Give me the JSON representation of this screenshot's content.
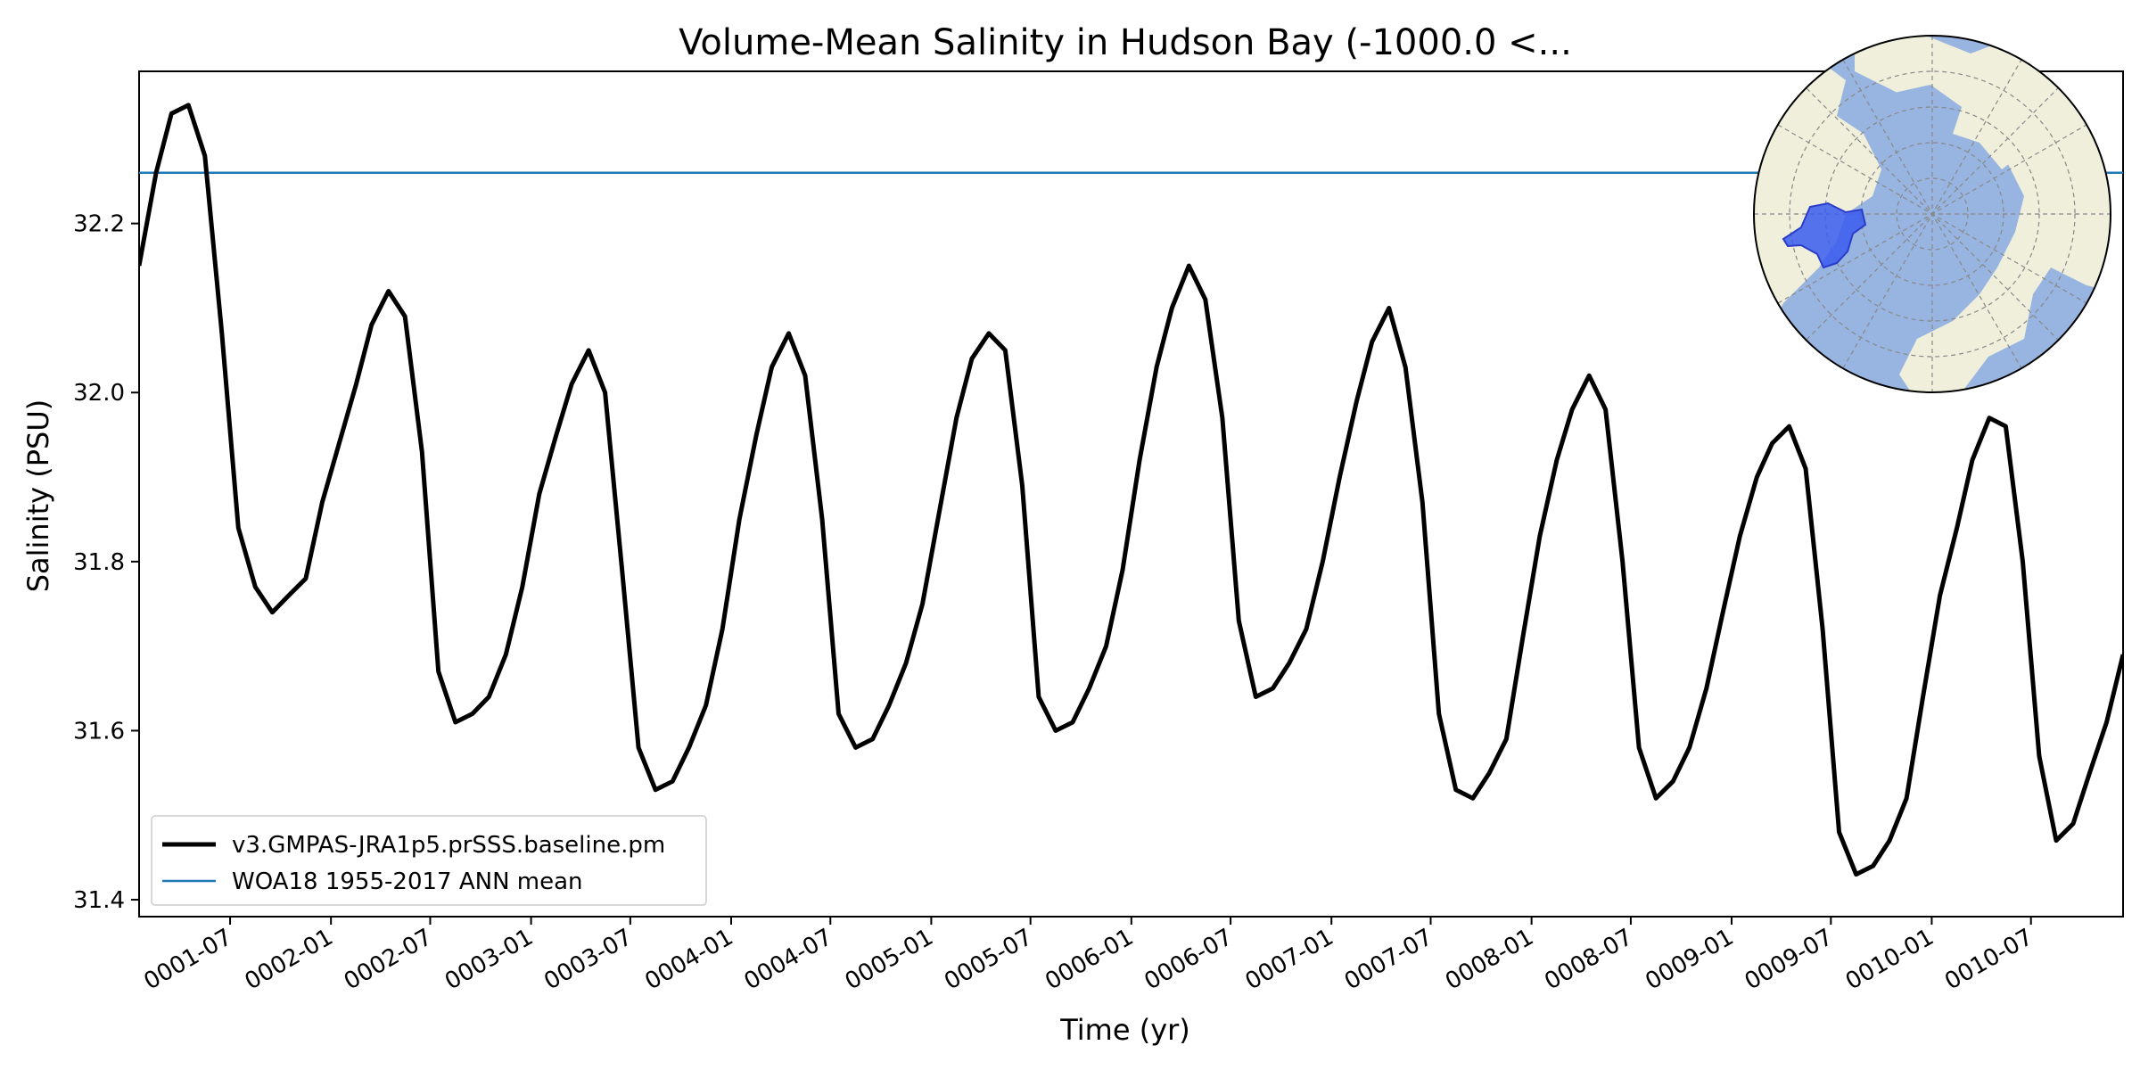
{
  "chart_data": {
    "type": "line",
    "title": "Volume-Mean Salinity in Hudson Bay (-1000.0 <...",
    "xlabel": "Time (yr)",
    "ylabel": "Salinity (PSU)",
    "xlim": [
      "0001-01-16",
      "0010-12-16"
    ],
    "ylim": [
      31.38,
      32.38
    ],
    "y_ticks": [
      31.4,
      31.6,
      31.8,
      32.0,
      32.2
    ],
    "y_tick_labels": [
      "31.4",
      "31.6",
      "31.8",
      "32.0",
      "32.2"
    ],
    "x_ticks": [
      "0001-07-01",
      "0002-01-01",
      "0002-07-01",
      "0003-01-01",
      "0003-07-01",
      "0004-01-01",
      "0004-07-01",
      "0005-01-01",
      "0005-07-01",
      "0006-01-01",
      "0006-07-01",
      "0007-01-01",
      "0007-07-01",
      "0008-01-01",
      "0008-07-01",
      "0009-01-01",
      "0009-07-01",
      "0010-01-01",
      "0010-07-01"
    ],
    "x_tick_labels": [
      "0001-07",
      "0002-01",
      "0002-07",
      "0003-01",
      "0003-07",
      "0004-01",
      "0004-07",
      "0005-01",
      "0005-07",
      "0006-01",
      "0006-07",
      "0007-01",
      "0007-07",
      "0008-01",
      "0008-07",
      "0009-01",
      "0009-07",
      "0010-01",
      "0010-07"
    ],
    "grid": false,
    "legend_position": "lower-left",
    "series": [
      {
        "name": "v3.GMPAS-JRA1p5.prSSS.baseline.pm",
        "color": "#000000",
        "x": [
          "0001-01",
          "0001-02",
          "0001-03",
          "0001-04",
          "0001-05",
          "0001-06",
          "0001-07",
          "0001-08",
          "0001-09",
          "0001-10",
          "0001-11",
          "0001-12",
          "0002-01",
          "0002-02",
          "0002-03",
          "0002-04",
          "0002-05",
          "0002-06",
          "0002-07",
          "0002-08",
          "0002-09",
          "0002-10",
          "0002-11",
          "0002-12",
          "0003-01",
          "0003-02",
          "0003-03",
          "0003-04",
          "0003-05",
          "0003-06",
          "0003-07",
          "0003-08",
          "0003-09",
          "0003-10",
          "0003-11",
          "0003-12",
          "0004-01",
          "0004-02",
          "0004-03",
          "0004-04",
          "0004-05",
          "0004-06",
          "0004-07",
          "0004-08",
          "0004-09",
          "0004-10",
          "0004-11",
          "0004-12",
          "0005-01",
          "0005-02",
          "0005-03",
          "0005-04",
          "0005-05",
          "0005-06",
          "0005-07",
          "0005-08",
          "0005-09",
          "0005-10",
          "0005-11",
          "0005-12",
          "0006-01",
          "0006-02",
          "0006-03",
          "0006-04",
          "0006-05",
          "0006-06",
          "0006-07",
          "0006-08",
          "0006-09",
          "0006-10",
          "0006-11",
          "0006-12",
          "0007-01",
          "0007-02",
          "0007-03",
          "0007-04",
          "0007-05",
          "0007-06",
          "0007-07",
          "0007-08",
          "0007-09",
          "0007-10",
          "0007-11",
          "0007-12",
          "0008-01",
          "0008-02",
          "0008-03",
          "0008-04",
          "0008-05",
          "0008-06",
          "0008-07",
          "0008-08",
          "0008-09",
          "0008-10",
          "0008-11",
          "0008-12",
          "0009-01",
          "0009-02",
          "0009-03",
          "0009-04",
          "0009-05",
          "0009-06",
          "0009-07",
          "0009-08",
          "0009-09",
          "0009-10",
          "0009-11",
          "0009-12",
          "0010-01",
          "0010-02",
          "0010-03",
          "0010-04",
          "0010-05",
          "0010-06",
          "0010-07",
          "0010-08",
          "0010-09",
          "0010-10",
          "0010-11",
          "0010-12"
        ],
        "values": [
          32.15,
          32.26,
          32.33,
          32.34,
          32.28,
          32.07,
          31.84,
          31.77,
          31.74,
          31.76,
          31.78,
          31.87,
          31.94,
          32.01,
          32.08,
          32.12,
          32.09,
          31.93,
          31.67,
          31.61,
          31.62,
          31.64,
          31.69,
          31.77,
          31.88,
          31.95,
          32.01,
          32.05,
          32.0,
          31.79,
          31.58,
          31.53,
          31.54,
          31.58,
          31.63,
          31.72,
          31.85,
          31.95,
          32.03,
          32.07,
          32.02,
          31.85,
          31.62,
          31.58,
          31.59,
          31.63,
          31.68,
          31.75,
          31.86,
          31.97,
          32.04,
          32.07,
          32.05,
          31.89,
          31.64,
          31.6,
          31.61,
          31.65,
          31.7,
          31.79,
          31.92,
          32.03,
          32.1,
          32.15,
          32.11,
          31.97,
          31.73,
          31.64,
          31.65,
          31.68,
          31.72,
          31.8,
          31.9,
          31.99,
          32.06,
          32.1,
          32.03,
          31.87,
          31.62,
          31.53,
          31.52,
          31.55,
          31.59,
          31.71,
          31.83,
          31.92,
          31.98,
          32.02,
          31.98,
          31.8,
          31.58,
          31.52,
          31.54,
          31.58,
          31.65,
          31.74,
          31.83,
          31.9,
          31.94,
          31.96,
          31.91,
          31.72,
          31.48,
          31.43,
          31.44,
          31.47,
          31.52,
          31.64,
          31.76,
          31.84,
          31.92,
          31.97,
          31.96,
          31.8,
          31.57,
          31.47,
          31.49,
          31.55,
          31.61,
          31.69
        ]
      },
      {
        "name": "WOA18 1955-2017 ANN mean",
        "color": "#1f77b4",
        "type": "hline",
        "value": 32.26
      }
    ]
  },
  "inset_map": {
    "name": "Hudson Bay region on polar stereographic map",
    "ocean_color": "#98b4e0",
    "land_color": "#efefdc",
    "region_color": "#3a5cf0"
  }
}
